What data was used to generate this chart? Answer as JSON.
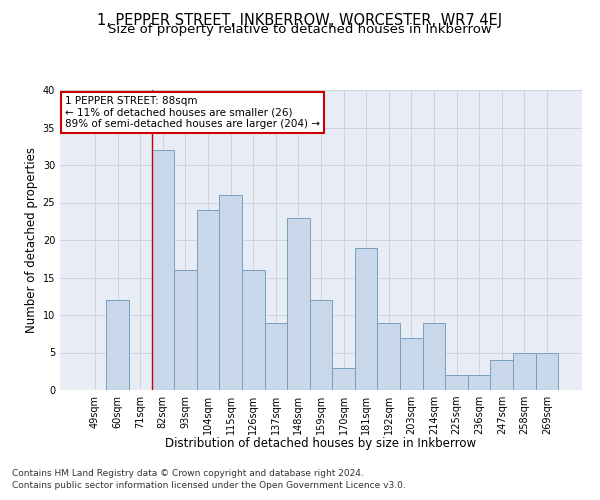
{
  "title": "1, PEPPER STREET, INKBERROW, WORCESTER, WR7 4EJ",
  "subtitle": "Size of property relative to detached houses in Inkberrow",
  "xlabel": "Distribution of detached houses by size in Inkberrow",
  "ylabel": "Number of detached properties",
  "categories": [
    "49sqm",
    "60sqm",
    "71sqm",
    "82sqm",
    "93sqm",
    "104sqm",
    "115sqm",
    "126sqm",
    "137sqm",
    "148sqm",
    "159sqm",
    "170sqm",
    "181sqm",
    "192sqm",
    "203sqm",
    "214sqm",
    "225sqm",
    "236sqm",
    "247sqm",
    "258sqm",
    "269sqm"
  ],
  "values": [
    0,
    12,
    0,
    32,
    16,
    24,
    26,
    16,
    9,
    23,
    12,
    3,
    19,
    9,
    7,
    9,
    2,
    2,
    4,
    5,
    5
  ],
  "bar_color": "#c8d8ea",
  "bar_edge_color": "#7a9fbe",
  "bar_edge_width": 0.7,
  "marker_label": "1 PEPPER STREET: 88sqm",
  "annotation_line1": "← 11% of detached houses are smaller (26)",
  "annotation_line2": "89% of semi-detached houses are larger (204) →",
  "annotation_box_color": "#ffffff",
  "annotation_box_edge_color": "#cc0000",
  "vertical_line_color": "#cc0000",
  "vertical_line_x": 2.5,
  "ylim": [
    0,
    40
  ],
  "yticks": [
    0,
    5,
    10,
    15,
    20,
    25,
    30,
    35,
    40
  ],
  "grid_color": "#c8d0dc",
  "bg_color": "#e8edf5",
  "footer_line1": "Contains HM Land Registry data © Crown copyright and database right 2024.",
  "footer_line2": "Contains public sector information licensed under the Open Government Licence v3.0.",
  "title_fontsize": 10.5,
  "subtitle_fontsize": 9.5,
  "axis_label_fontsize": 8.5,
  "tick_fontsize": 7,
  "annotation_fontsize": 7.5,
  "footer_fontsize": 6.5
}
